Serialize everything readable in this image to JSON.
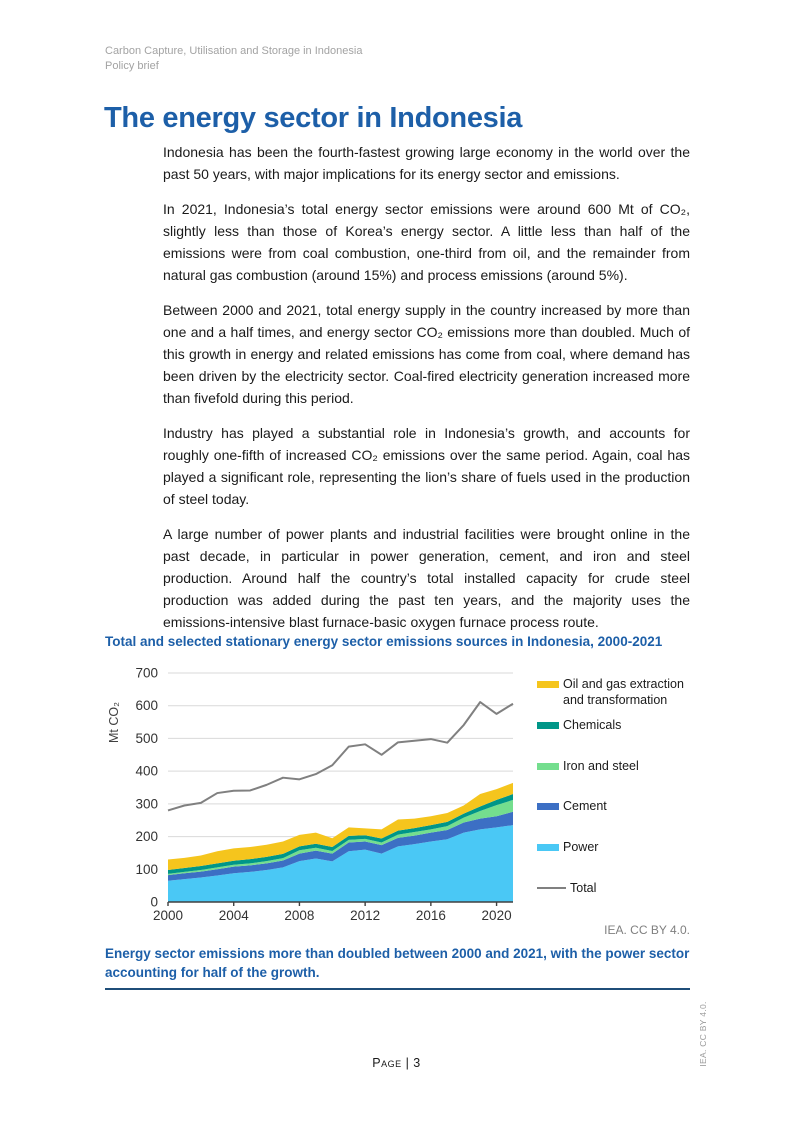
{
  "page": {
    "header": {
      "line1": "Carbon Capture, Utilisation and Storage in Indonesia",
      "line2": "Policy brief"
    },
    "title": "The energy sector in Indonesia",
    "paragraphs": [
      "Indonesia has been the fourth-fastest growing large economy in the world over the past 50 years, with major implications for its energy sector and emissions.",
      "In 2021, Indonesia’s total energy sector emissions were around 600 Mt of CO₂, slightly less than those of Korea’s energy sector. A little less than half of the emissions were from coal combustion, one-third from oil, and the remainder from natural gas combustion (around 15%) and process emissions (around 5%).",
      "Between 2000 and 2021, total energy supply in the country increased by more than one and a half times, and energy sector CO₂ emissions more than doubled. Much of this growth in energy and related emissions has come from coal, where demand has been driven by the electricity sector. Coal-fired electricity generation increased more than fivefold during this period.",
      "Industry has played a substantial role in Indonesia’s growth, and accounts for roughly one-fifth of increased CO₂ emissions over the same period. Again, coal has played a significant role, representing the lion’s share of fuels used in the production of steel today.",
      "A large number of power plants and industrial facilities were brought online in the past decade, in particular in power generation, cement, and iron and steel production. Around half the country’s total installed capacity for crude steel production was added during the past ten years, and the majority uses the emissions-intensive blast furnace-basic oxygen furnace process route."
    ],
    "figure": {
      "credit": "IEA. CC BY 4.0.",
      "caption": "Energy sector emissions more than doubled between 2000 and 2021, with the power sector accounting for half of the growth."
    },
    "footer": {
      "page_label": "Page | 3",
      "side_note": "IEA. CC BY 4.0."
    }
  },
  "chart_data": {
    "type": "area",
    "title": "Total and selected stationary energy sector emissions sources in Indonesia, 2000-2021",
    "ylabel": "Mt CO₂",
    "ylim": [
      0,
      700
    ],
    "yticks": [
      0,
      100,
      200,
      300,
      400,
      500,
      600,
      700
    ],
    "xticks": [
      2000,
      2004,
      2008,
      2012,
      2016,
      2020
    ],
    "grid": "horizontal",
    "legend_position": "right",
    "x": [
      2000,
      2001,
      2002,
      2003,
      2004,
      2005,
      2006,
      2007,
      2008,
      2009,
      2010,
      2011,
      2012,
      2013,
      2014,
      2015,
      2016,
      2017,
      2018,
      2019,
      2020,
      2021
    ],
    "series": [
      {
        "name": "Power",
        "type": "area-stacked",
        "color": "#4ac8f5",
        "values": [
          65,
          70,
          75,
          81,
          88,
          92,
          98,
          106,
          125,
          133,
          124,
          155,
          160,
          148,
          170,
          177,
          185,
          192,
          212,
          222,
          228,
          235
        ]
      },
      {
        "name": "Cement",
        "type": "area-stacked",
        "color": "#3c6fc4",
        "values": [
          17,
          18,
          18,
          19,
          20,
          20,
          20,
          21,
          23,
          24,
          24,
          27,
          25,
          26,
          26,
          26,
          27,
          28,
          31,
          33,
          34,
          41
        ]
      },
      {
        "name": "Iron and steel",
        "type": "area-stacked",
        "color": "#74de8e",
        "values": [
          4,
          4,
          5,
          6,
          6,
          6,
          7,
          7,
          10,
          9,
          8,
          8,
          8,
          8,
          10,
          11,
          10,
          12,
          15,
          23,
          34,
          36
        ]
      },
      {
        "name": "Chemicals",
        "type": "area-stacked",
        "color": "#009688",
        "values": [
          12,
          12,
          12,
          12,
          12,
          13,
          13,
          13,
          12,
          12,
          12,
          12,
          11,
          12,
          12,
          12,
          13,
          13,
          12,
          14,
          16,
          18
        ]
      },
      {
        "name": "Oil and gas extraction and transformation",
        "type": "area-stacked",
        "color": "#f5c51d",
        "values": [
          32,
          31,
          32,
          37,
          38,
          37,
          37,
          38,
          35,
          34,
          27,
          26,
          21,
          28,
          34,
          29,
          27,
          27,
          25,
          38,
          33,
          34
        ]
      },
      {
        "name": "Total",
        "type": "line",
        "color": "#808080",
        "values": [
          280,
          295,
          303,
          333,
          340,
          341,
          358,
          380,
          375,
          391,
          418,
          475,
          482,
          450,
          488,
          493,
          498,
          487,
          541,
          611,
          575,
          606
        ]
      }
    ],
    "legend_order": [
      4,
      3,
      2,
      1,
      0,
      5
    ]
  }
}
